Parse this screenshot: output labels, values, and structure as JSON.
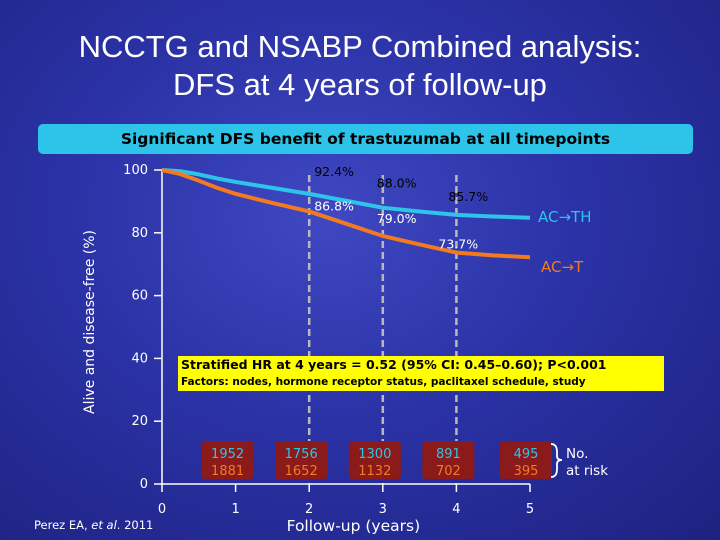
{
  "title": {
    "line1": "NCCTG and NSABP Combined analysis:",
    "line2": "DFS at 4 years of follow-up"
  },
  "banner": "Significant DFS benefit of trastuzumab at all timepoints",
  "hr_text": "Stratified HR at 4 years = 0.52 (95% CI: 0.45–0.60); P<0.001",
  "factors_text": "Factors: nodes, hormone receptor status, paclitaxel schedule, study",
  "at_risk_label": [
    "No.",
    "at risk"
  ],
  "citation": {
    "author": "Perez EA, ",
    "etal": "et al",
    "year": ". 2011"
  },
  "colors": {
    "ac_th": "#2ec4ea",
    "ac_t": "#f47a20",
    "at_risk_box": "#8b1a1a",
    "dashed": "#b9b9b9"
  },
  "chart_data": {
    "type": "line",
    "xlabel": "Follow-up (years)",
    "ylabel": "Alive and disease-free (%)",
    "xlim": [
      0,
      5
    ],
    "ylim": [
      0,
      100
    ],
    "x_ticks": [
      "0",
      "1",
      "2",
      "3",
      "4",
      "5"
    ],
    "y_ticks": [
      "0",
      "20",
      "40",
      "60",
      "80",
      "100"
    ],
    "series": [
      {
        "name": "AC→TH",
        "color": "#2ec4ea",
        "x": [
          0,
          0.25,
          0.5,
          0.75,
          1,
          1.5,
          2,
          2.5,
          3,
          3.5,
          4,
          4.5,
          5
        ],
        "y": [
          100,
          99.6,
          98.6,
          97.3,
          96.2,
          94.3,
          92.4,
          90.2,
          88.0,
          86.8,
          85.7,
          85.2,
          84.8
        ]
      },
      {
        "name": "AC→T",
        "color": "#f47a20",
        "x": [
          0,
          0.25,
          0.5,
          0.75,
          1,
          1.5,
          2,
          2.5,
          3,
          3.5,
          4,
          4.5,
          5
        ],
        "y": [
          100,
          98.7,
          96.6,
          94.3,
          92.4,
          89.5,
          86.8,
          82.9,
          79.0,
          76.3,
          73.7,
          72.8,
          72.2
        ]
      }
    ],
    "annotations": [
      {
        "x": 2,
        "y": 92.4,
        "label": "92.4%"
      },
      {
        "x": 3,
        "y": 88.0,
        "label": "88.0%"
      },
      {
        "x": 4,
        "y": 85.7,
        "label": "85.7%"
      },
      {
        "x": 2,
        "y": 86.8,
        "label": "86.8%"
      },
      {
        "x": 3,
        "y": 79.0,
        "label": "79.0%"
      },
      {
        "x": 4,
        "y": 73.7,
        "label": "73.7%"
      }
    ],
    "dashed_verticals": [
      2,
      3,
      4
    ],
    "at_risk": {
      "x": [
        1,
        2,
        3,
        4,
        5
      ],
      "ac_th": [
        "1952",
        "1756",
        "1300",
        "891",
        "495"
      ],
      "ac_t": [
        "1881",
        "1652",
        "1132",
        "702",
        "395"
      ]
    }
  }
}
